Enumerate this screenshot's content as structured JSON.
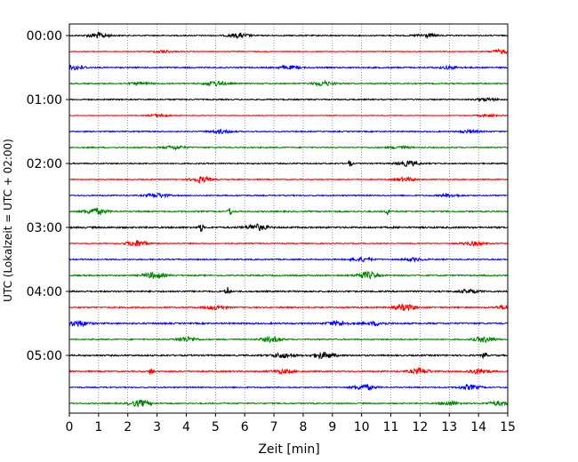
{
  "chart_data": {
    "type": "line",
    "title": "",
    "xlabel": "Zeit  [min]",
    "ylabel": "UTC (Lokalzeit = UTC + 02:00)",
    "xlim": [
      0,
      15
    ],
    "x_ticks": [
      "0",
      "1",
      "2",
      "3",
      "4",
      "5",
      "6",
      "7",
      "8",
      "9",
      "10",
      "11",
      "12",
      "13",
      "14",
      "15"
    ],
    "y_tick_labels": [
      "00:00",
      "01:00",
      "02:00",
      "03:00",
      "04:00",
      "05:00"
    ],
    "grid": "vertical dotted lines at each minute",
    "trace_start": "00:00",
    "trace_interval_minutes": 15,
    "trace_count": 24,
    "trace_color_cycle": [
      "#000000",
      "#ff0000",
      "#0000ff",
      "#008000"
    ],
    "series": [
      {
        "start": "00:00",
        "amplitude": 0.35,
        "events": [
          {
            "t": 1.0,
            "a": 1.6
          },
          {
            "t": 5.8,
            "a": 1.3
          },
          {
            "t": 12.2,
            "a": 1.0
          }
        ]
      },
      {
        "start": "00:15",
        "amplitude": 0.25,
        "events": [
          {
            "t": 3.2,
            "a": 0.8
          },
          {
            "t": 14.8,
            "a": 1.2
          }
        ]
      },
      {
        "start": "00:30",
        "amplitude": 0.4,
        "events": [
          {
            "t": 0.2,
            "a": 1.3
          },
          {
            "t": 7.5,
            "a": 0.9
          },
          {
            "t": 13.0,
            "a": 0.8
          }
        ]
      },
      {
        "start": "00:45",
        "amplitude": 0.35,
        "events": [
          {
            "t": 2.4,
            "a": 0.7
          },
          {
            "t": 5.0,
            "a": 1.5
          },
          {
            "t": 8.7,
            "a": 1.4
          }
        ]
      },
      {
        "start": "01:00",
        "amplitude": 0.35,
        "events": [
          {
            "t": 14.3,
            "a": 0.8
          }
        ]
      },
      {
        "start": "01:15",
        "amplitude": 0.2,
        "events": [
          {
            "t": 3.1,
            "a": 1.0
          },
          {
            "t": 14.3,
            "a": 0.7
          }
        ]
      },
      {
        "start": "01:30",
        "amplitude": 0.35,
        "events": [
          {
            "t": 5.2,
            "a": 1.1
          },
          {
            "t": 13.7,
            "a": 0.8
          }
        ]
      },
      {
        "start": "01:45",
        "amplitude": 0.35,
        "events": [
          {
            "t": 3.6,
            "a": 1.0
          },
          {
            "t": 11.3,
            "a": 0.8
          }
        ]
      },
      {
        "start": "02:00",
        "amplitude": 0.35,
        "events": [
          {
            "t": 9.6,
            "a": 2.2
          },
          {
            "t": 11.6,
            "a": 1.5
          }
        ]
      },
      {
        "start": "02:15",
        "amplitude": 0.3,
        "events": [
          {
            "t": 4.5,
            "a": 1.7
          },
          {
            "t": 11.5,
            "a": 1.2
          }
        ]
      },
      {
        "start": "02:30",
        "amplitude": 0.35,
        "events": [
          {
            "t": 3.0,
            "a": 1.3
          },
          {
            "t": 13.0,
            "a": 0.8
          }
        ]
      },
      {
        "start": "02:45",
        "amplitude": 0.4,
        "events": [
          {
            "t": 0.9,
            "a": 1.8
          },
          {
            "t": 5.5,
            "a": 2.6
          },
          {
            "t": 10.9,
            "a": 2.3
          }
        ]
      },
      {
        "start": "03:00",
        "amplitude": 0.5,
        "events": [
          {
            "t": 4.5,
            "a": 2.6
          },
          {
            "t": 6.4,
            "a": 1.8
          }
        ]
      },
      {
        "start": "03:15",
        "amplitude": 0.3,
        "events": [
          {
            "t": 2.3,
            "a": 1.9
          },
          {
            "t": 13.8,
            "a": 1.2
          }
        ]
      },
      {
        "start": "03:30",
        "amplitude": 0.35,
        "events": [
          {
            "t": 10.0,
            "a": 1.2
          },
          {
            "t": 11.8,
            "a": 0.9
          }
        ]
      },
      {
        "start": "03:45",
        "amplitude": 0.4,
        "events": [
          {
            "t": 2.9,
            "a": 1.8
          },
          {
            "t": 10.2,
            "a": 2.0
          }
        ]
      },
      {
        "start": "04:00",
        "amplitude": 0.45,
        "events": [
          {
            "t": 5.4,
            "a": 3.0
          },
          {
            "t": 13.7,
            "a": 1.0
          }
        ]
      },
      {
        "start": "04:15",
        "amplitude": 0.4,
        "events": [
          {
            "t": 5.0,
            "a": 1.2
          },
          {
            "t": 11.5,
            "a": 1.8
          },
          {
            "t": 15.0,
            "a": 1.4
          }
        ]
      },
      {
        "start": "04:30",
        "amplitude": 0.45,
        "events": [
          {
            "t": 0.3,
            "a": 1.6
          },
          {
            "t": 9.2,
            "a": 1.3
          },
          {
            "t": 10.5,
            "a": 1.0
          }
        ]
      },
      {
        "start": "04:45",
        "amplitude": 0.35,
        "events": [
          {
            "t": 4.0,
            "a": 1.5
          },
          {
            "t": 6.9,
            "a": 1.5
          },
          {
            "t": 14.2,
            "a": 1.7
          }
        ]
      },
      {
        "start": "05:00",
        "amplitude": 0.45,
        "events": [
          {
            "t": 7.3,
            "a": 1.4
          },
          {
            "t": 8.7,
            "a": 1.8
          },
          {
            "t": 14.2,
            "a": 2.2
          }
        ]
      },
      {
        "start": "05:15",
        "amplitude": 0.4,
        "events": [
          {
            "t": 2.8,
            "a": 2.4
          },
          {
            "t": 7.3,
            "a": 1.2
          },
          {
            "t": 12.0,
            "a": 1.6
          },
          {
            "t": 14.0,
            "a": 1.5
          }
        ]
      },
      {
        "start": "05:30",
        "amplitude": 0.35,
        "events": [
          {
            "t": 10.1,
            "a": 1.6
          },
          {
            "t": 13.7,
            "a": 1.4
          }
        ]
      },
      {
        "start": "05:45",
        "amplitude": 0.35,
        "events": [
          {
            "t": 2.4,
            "a": 1.9
          },
          {
            "t": 13.0,
            "a": 1.1
          },
          {
            "t": 14.7,
            "a": 1.2
          }
        ]
      }
    ]
  }
}
